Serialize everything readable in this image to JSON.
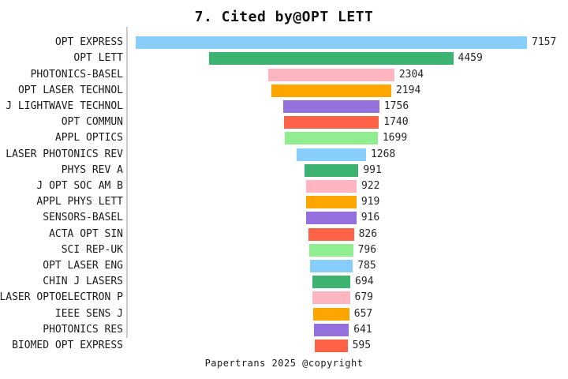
{
  "title": "7. Cited by@OPT LETT",
  "footer": "Papertrans 2025 @copyright",
  "chart_data": {
    "type": "bar",
    "orientation": "horizontal",
    "style": "bars horizontally centered (funnel-like), value label at right end of each bar",
    "title": "7. Cited by@OPT LETT",
    "xlabel": "",
    "ylabel": "",
    "grid": false,
    "legend": "none",
    "categories": [
      "OPT EXPRESS",
      "OPT LETT",
      "PHOTONICS-BASEL",
      "OPT LASER TECHNOL",
      "J LIGHTWAVE TECHNOL",
      "OPT COMMUN",
      "APPL OPTICS",
      "LASER PHOTONICS REV",
      "PHYS REV A",
      "J OPT SOC AM B",
      "APPL PHYS LETT",
      "SENSORS-BASEL",
      "ACTA OPT SIN",
      "SCI REP-UK",
      "OPT LASER ENG",
      "CHIN J LASERS",
      "LASER OPTOELECTRON P",
      "IEEE SENS J",
      "PHOTONICS RES",
      "BIOMED OPT EXPRESS"
    ],
    "values": [
      7157,
      4459,
      2304,
      2194,
      1756,
      1740,
      1699,
      1268,
      991,
      922,
      919,
      916,
      826,
      796,
      785,
      694,
      679,
      657,
      641,
      595
    ],
    "palette": [
      "#87CEFA",
      "#3CB371",
      "#FFB6C1",
      "#FFA500",
      "#9370DB",
      "#FF6347",
      "#90EE90"
    ],
    "axis_line_color": "#cccccc",
    "label_color": "#1a1a1a",
    "value_label_color": "#262626"
  }
}
